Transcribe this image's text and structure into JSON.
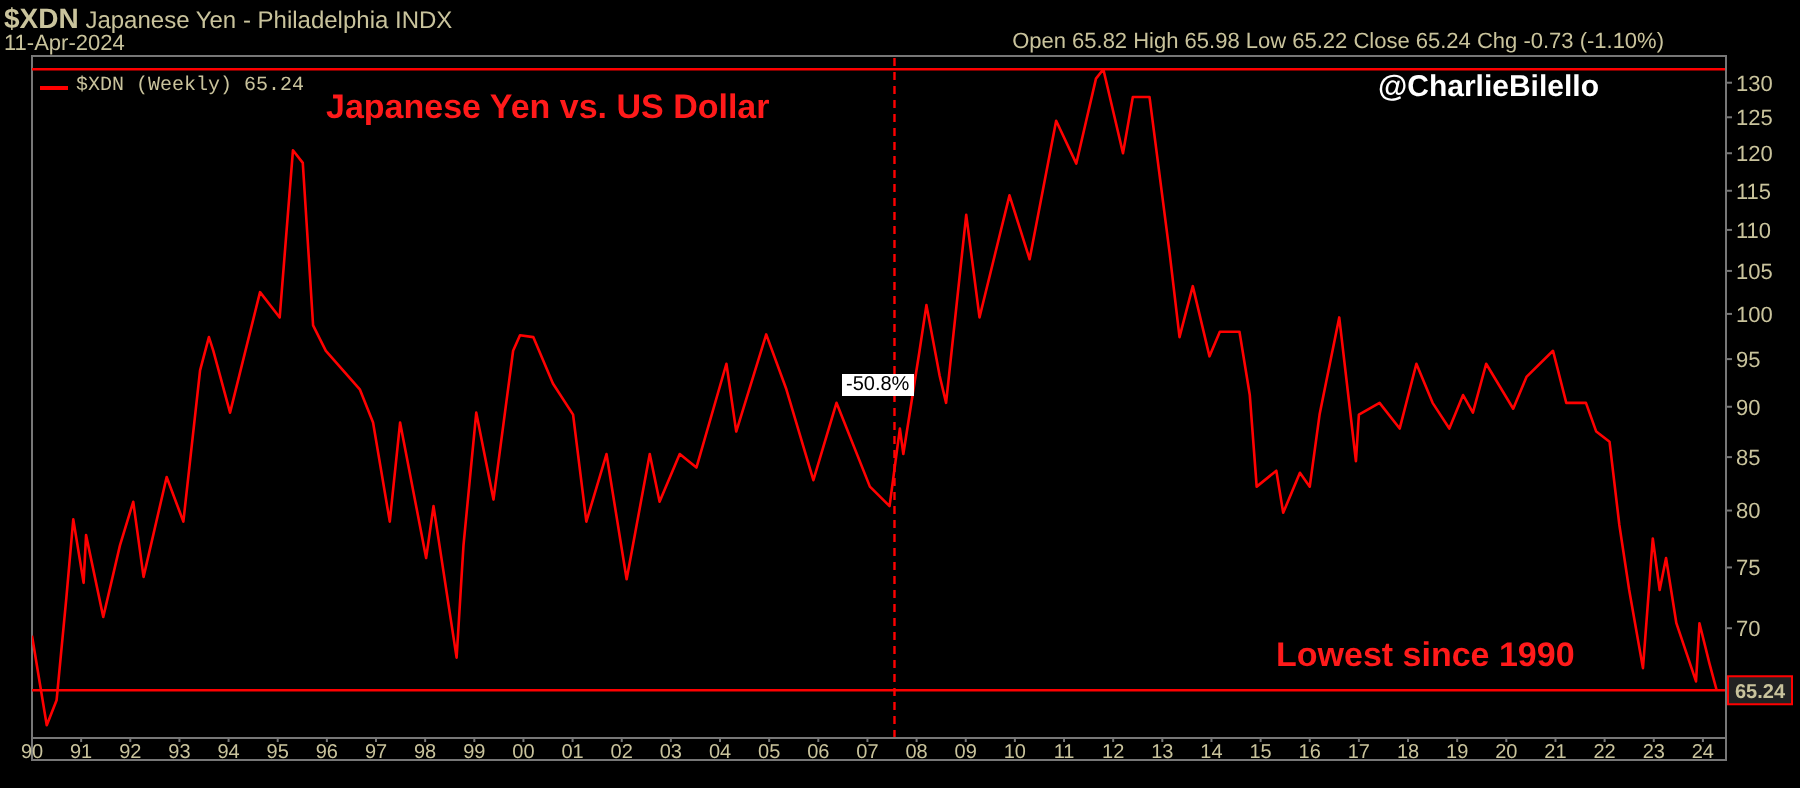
{
  "chart_data": {
    "type": "line",
    "title": "$XDN Japanese Yen - Philadelphia INDX",
    "subtitle": "11-Apr-2024",
    "annotations": [
      "Japanese Yen vs. US Dollar",
      "@CharlieBilello",
      "Lowest since 1990",
      "Open 65.82  High 65.98  Low 65.22  Close 65.24  Chg -0.73 (-1.10%)",
      "-50.8%"
    ],
    "x": [
      1990.0,
      1990.3,
      1990.5,
      1990.7,
      1990.84,
      1991.05,
      1991.1,
      1991.45,
      1991.79,
      1992.06,
      1992.27,
      1992.74,
      1993.08,
      1993.42,
      1993.6,
      1993.69,
      1994.03,
      1994.64,
      1995.04,
      1995.31,
      1995.51,
      1995.72,
      1995.98,
      1996.67,
      1996.94,
      1997.28,
      1997.49,
      1998.02,
      1998.17,
      1998.64,
      1998.78,
      1999.04,
      1999.39,
      1999.79,
      1999.93,
      2000.2,
      2000.6,
      2001.01,
      2001.28,
      2001.69,
      2002.1,
      2002.57,
      2002.77,
      2003.18,
      2003.52,
      2004.13,
      2004.33,
      2004.94,
      2005.35,
      2005.9,
      2006.37,
      2007.05,
      2007.45,
      2007.66,
      2007.73,
      2008.06,
      2008.2,
      2008.47,
      2008.6,
      2009.01,
      2009.28,
      2009.89,
      2010.3,
      2010.84,
      2011.25,
      2011.65,
      2011.8,
      2012.2,
      2012.4,
      2012.74,
      2013.15,
      2013.35,
      2013.62,
      2013.96,
      2014.17,
      2014.57,
      2014.78,
      2014.92,
      2015.32,
      2015.46,
      2015.8,
      2016.0,
      2016.2,
      2016.6,
      2016.94,
      2017.0,
      2017.42,
      2017.83,
      2018.17,
      2018.5,
      2018.84,
      2019.12,
      2019.32,
      2019.59,
      2020.14,
      2020.41,
      2020.95,
      2021.22,
      2021.62,
      2021.83,
      2022.1,
      2022.3,
      2022.5,
      2022.78,
      2022.98,
      2023.12,
      2023.25,
      2023.46,
      2023.86,
      2023.93,
      2024.13,
      2024.28
    ],
    "series": [
      {
        "name": "$XDN (Weekly) 65.24",
        "color": "#ff0000",
        "values": [
          69.4,
          62.7,
          64.5,
          72.5,
          79.2,
          73.7,
          77.8,
          70.9,
          76.9,
          80.8,
          74.2,
          83.1,
          79.0,
          93.8,
          97.4,
          95.9,
          89.4,
          102.5,
          99.6,
          120.4,
          118.7,
          98.7,
          95.9,
          91.8,
          88.4,
          79.0,
          88.4,
          75.8,
          80.4,
          67.7,
          76.9,
          89.4,
          81.0,
          95.9,
          97.6,
          97.4,
          92.4,
          89.2,
          79.0,
          85.3,
          74.0,
          85.3,
          80.8,
          85.3,
          84.0,
          94.5,
          87.5,
          97.7,
          91.8,
          82.8,
          90.4,
          82.2,
          80.4,
          87.8,
          85.3,
          95.9,
          101.0,
          93.2,
          90.4,
          111.9,
          99.6,
          114.4,
          106.4,
          124.5,
          118.6,
          130.6,
          132.0,
          120.0,
          127.9,
          127.9,
          107.1,
          97.4,
          103.2,
          95.3,
          98.0,
          98.0,
          91.2,
          82.2,
          83.7,
          79.8,
          83.5,
          82.2,
          89.2,
          99.6,
          84.6,
          89.2,
          90.4,
          87.8,
          94.5,
          90.4,
          87.8,
          91.2,
          89.4,
          94.5,
          89.8,
          93.1,
          95.9,
          90.4,
          90.4,
          87.5,
          86.5,
          78.7,
          73.1,
          66.9,
          77.5,
          73.1,
          75.8,
          70.4,
          65.9,
          70.4,
          67.3,
          65.24
        ]
      }
    ],
    "xlim": [
      1990.0,
      2024.47
    ],
    "xticks": [
      {
        "value": 1990,
        "label": "90"
      },
      {
        "value": 1991,
        "label": "91"
      },
      {
        "value": 1992,
        "label": "92"
      },
      {
        "value": 1993,
        "label": "93"
      },
      {
        "value": 1994,
        "label": "94"
      },
      {
        "value": 1995,
        "label": "95"
      },
      {
        "value": 1996,
        "label": "96"
      },
      {
        "value": 1997,
        "label": "97"
      },
      {
        "value": 1998,
        "label": "98"
      },
      {
        "value": 1999,
        "label": "99"
      },
      {
        "value": 2000,
        "label": "00"
      },
      {
        "value": 2001,
        "label": "01"
      },
      {
        "value": 2002,
        "label": "02"
      },
      {
        "value": 2003,
        "label": "03"
      },
      {
        "value": 2004,
        "label": "04"
      },
      {
        "value": 2005,
        "label": "05"
      },
      {
        "value": 2006,
        "label": "06"
      },
      {
        "value": 2007,
        "label": "07"
      },
      {
        "value": 2008,
        "label": "08"
      },
      {
        "value": 2009,
        "label": "09"
      },
      {
        "value": 2010,
        "label": "10"
      },
      {
        "value": 2011,
        "label": "11"
      },
      {
        "value": 2012,
        "label": "12"
      },
      {
        "value": 2013,
        "label": "13"
      },
      {
        "value": 2014,
        "label": "14"
      },
      {
        "value": 2015,
        "label": "15"
      },
      {
        "value": 2016,
        "label": "16"
      },
      {
        "value": 2017,
        "label": "17"
      },
      {
        "value": 2018,
        "label": "18"
      },
      {
        "value": 2019,
        "label": "19"
      },
      {
        "value": 2020,
        "label": "20"
      },
      {
        "value": 2021,
        "label": "21"
      },
      {
        "value": 2022,
        "label": "22"
      },
      {
        "value": 2023,
        "label": "23"
      },
      {
        "value": 2024,
        "label": "24"
      }
    ],
    "ylim": [
      61.8,
      134
    ],
    "yticks": [
      70,
      75,
      80,
      85,
      90,
      95,
      100,
      105,
      110,
      115,
      120,
      125,
      130
    ],
    "log": "y",
    "ref_lines": [
      {
        "axis": "y",
        "value": 65.24,
        "label": "65.24",
        "color": "#ff0000",
        "line_style": "solid"
      },
      {
        "axis": "y",
        "value": 132,
        "label": null,
        "color": "#ff0000",
        "line_style": "solid"
      },
      {
        "axis": "x",
        "value": 2007.55,
        "label": null,
        "color": "#ff0000",
        "line_style": "dashed"
      }
    ],
    "legend": "top left",
    "marker": "none",
    "line_style": "solid"
  }
}
